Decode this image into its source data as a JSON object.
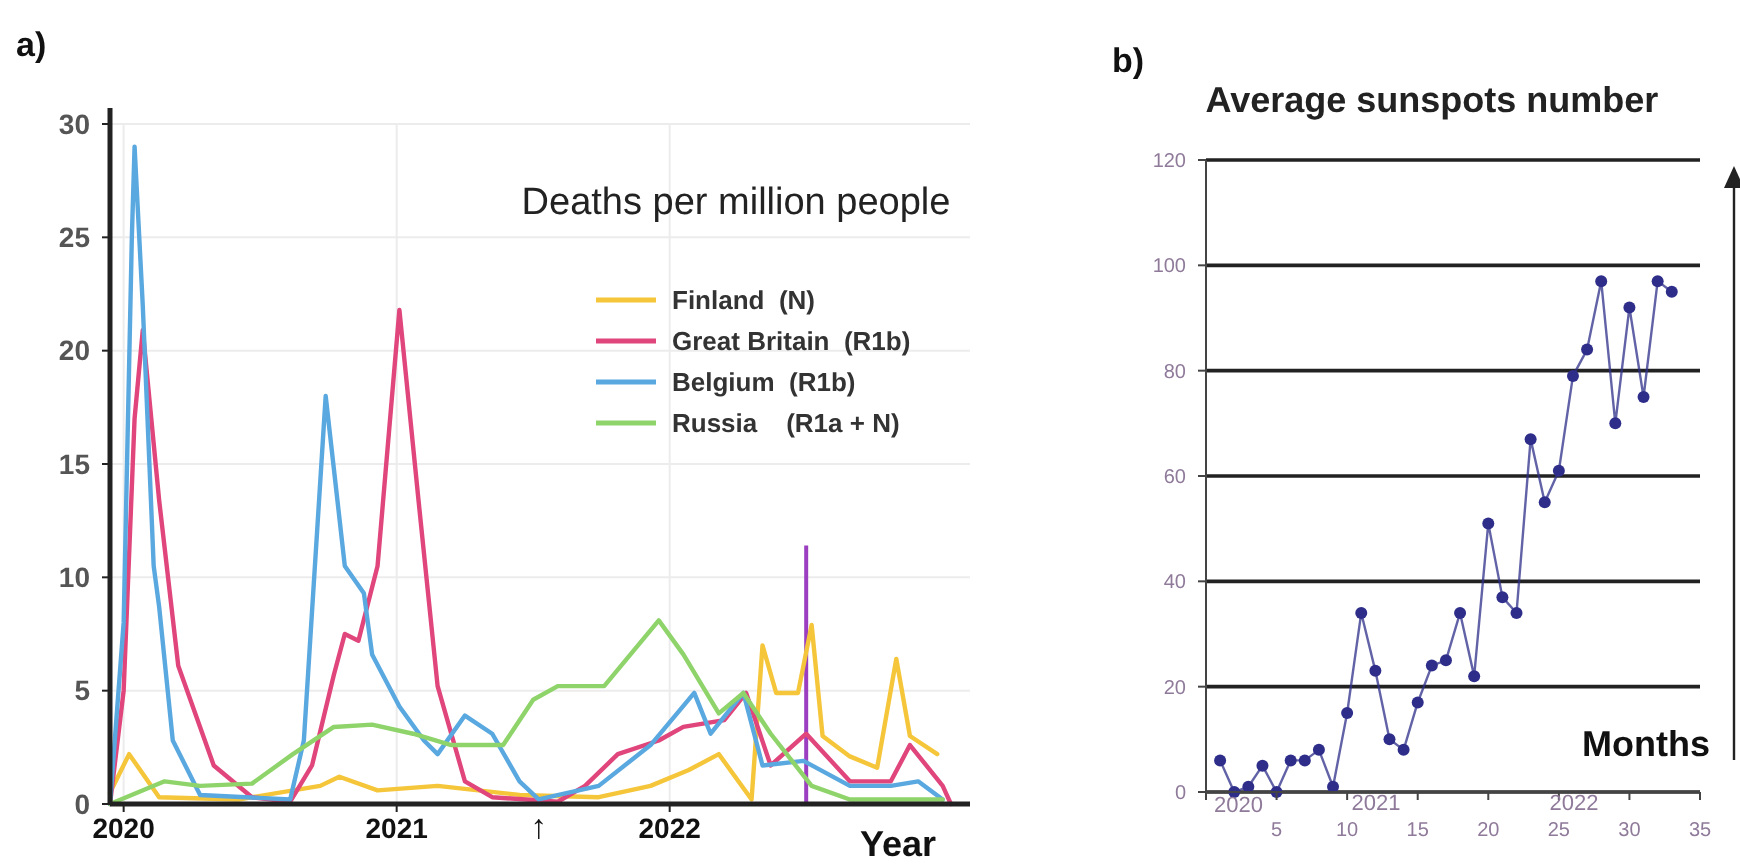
{
  "chart_data": [
    {
      "type": "line",
      "title": "Deaths per million people",
      "xlabel": "Year",
      "annotations": [
        "a)",
        {
          "text": "↑",
          "x": 2021.52,
          "y": 0
        }
      ],
      "xlim": [
        2019.95,
        2023.1
      ],
      "ylim": [
        0,
        30
      ],
      "xticks": [
        2020,
        2021,
        2022
      ],
      "yticks": [
        0,
        5,
        10,
        15,
        20,
        25,
        30
      ],
      "grid": true,
      "legend": "top right",
      "ref_lines": [
        {
          "axis": "x",
          "value": 2022.5,
          "color": "#9b3fc0"
        }
      ],
      "series": [
        {
          "name": "Finland  (N)",
          "color": "#f5c53a",
          "x": [
            2019.95,
            2020.02,
            2020.13,
            2020.42,
            2020.72,
            2020.79,
            2020.93,
            2021.15,
            2021.45,
            2021.74,
            2021.93,
            2022.07,
            2022.18,
            2022.3,
            2022.34,
            2022.39,
            2022.47,
            2022.52,
            2022.56,
            2022.66,
            2022.76,
            2022.83,
            2022.88,
            2022.98
          ],
          "values": [
            0.5,
            2.2,
            0.3,
            0.2,
            0.8,
            1.2,
            0.6,
            0.8,
            0.4,
            0.3,
            0.8,
            1.5,
            2.2,
            0.2,
            7.0,
            4.9,
            4.9,
            7.9,
            3.0,
            2.1,
            1.6,
            6.4,
            3.0,
            2.2
          ]
        },
        {
          "name": "Great Britain  (R1b)",
          "color": "#e0457b",
          "x": [
            2019.95,
            2020.0,
            2020.04,
            2020.07,
            2020.13,
            2020.2,
            2020.33,
            2020.47,
            2020.61,
            2020.69,
            2020.77,
            2020.81,
            2020.86,
            2020.93,
            2021.01,
            2021.08,
            2021.15,
            2021.25,
            2021.35,
            2021.59,
            2021.69,
            2021.81,
            2021.96,
            2022.05,
            2022.2,
            2022.28,
            2022.37,
            2022.5,
            2022.66,
            2022.81,
            2022.88,
            2023.0,
            2023.03
          ],
          "values": [
            0,
            5,
            17,
            20.9,
            13.4,
            6.1,
            1.7,
            0.3,
            0.1,
            1.7,
            5.7,
            7.5,
            7.2,
            10.5,
            21.8,
            13.4,
            5.2,
            1.0,
            0.3,
            0.1,
            0.8,
            2.2,
            2.8,
            3.4,
            3.7,
            4.9,
            1.7,
            3.1,
            1.0,
            1.0,
            2.6,
            0.8,
            0
          ]
        },
        {
          "name": "Belgium  (R1b)",
          "color": "#5aa8e0",
          "x": [
            2019.95,
            2020.0,
            2020.03,
            2020.04,
            2020.07,
            2020.11,
            2020.13,
            2020.18,
            2020.28,
            2020.61,
            2020.66,
            2020.74,
            2020.81,
            2020.88,
            2020.91,
            2021.01,
            2021.1,
            2021.15,
            2021.25,
            2021.35,
            2021.45,
            2021.52,
            2021.74,
            2021.93,
            2022.09,
            2022.15,
            2022.27,
            2022.34,
            2022.49,
            2022.66,
            2022.81,
            2022.91,
            2023.0
          ],
          "values": [
            0,
            8,
            25,
            29,
            22,
            10.5,
            8.7,
            2.8,
            0.4,
            0.2,
            2.8,
            18,
            10.5,
            9.3,
            6.6,
            4.3,
            2.8,
            2.2,
            3.9,
            3.1,
            1.0,
            0.2,
            0.8,
            2.6,
            4.9,
            3.1,
            4.9,
            1.7,
            1.9,
            0.8,
            0.8,
            1.0,
            0.2
          ]
        },
        {
          "name": "Russia    (R1a + N)",
          "color": "#8fd46a",
          "x": [
            2019.95,
            2020.15,
            2020.28,
            2020.47,
            2020.62,
            2020.77,
            2020.91,
            2021.06,
            2021.2,
            2021.39,
            2021.5,
            2021.59,
            2021.76,
            2021.96,
            2022.05,
            2022.18,
            2022.27,
            2022.37,
            2022.52,
            2022.66,
            2023.0
          ],
          "values": [
            0,
            1.0,
            0.8,
            0.9,
            2.2,
            3.4,
            3.5,
            3.1,
            2.6,
            2.6,
            4.6,
            5.2,
            5.2,
            8.1,
            6.6,
            4.0,
            4.9,
            3.1,
            0.8,
            0.2,
            0.2
          ]
        }
      ]
    },
    {
      "type": "line",
      "title": "Average sunspots number",
      "xlabel": "Months",
      "annotations": [
        "b)",
        "2020",
        "2021",
        "2022"
      ],
      "xlim": [
        0,
        35
      ],
      "ylim": [
        0,
        120
      ],
      "xticks": [
        {
          "value": 0,
          "label": null
        },
        5,
        10,
        15,
        20,
        25,
        30,
        35
      ],
      "yticks": [
        0,
        20,
        40,
        60,
        80,
        100,
        120
      ],
      "grid": "y",
      "marker": "circle",
      "series": [
        {
          "color": "#2e2e8a",
          "x": [
            1,
            2,
            3,
            4,
            5,
            6,
            7,
            8,
            9,
            10,
            11,
            12,
            13,
            14,
            15,
            16,
            17,
            18,
            19,
            20,
            21,
            22,
            23,
            24,
            25,
            26,
            27,
            28,
            29,
            30,
            31,
            32,
            33
          ],
          "values": [
            6,
            0,
            1,
            5,
            0,
            6,
            6,
            8,
            1,
            15,
            34,
            23,
            10,
            8,
            17,
            24,
            25,
            34,
            22,
            51,
            37,
            34,
            67,
            55,
            61,
            79,
            84,
            97,
            70,
            92,
            75,
            97,
            95
          ]
        }
      ]
    }
  ]
}
